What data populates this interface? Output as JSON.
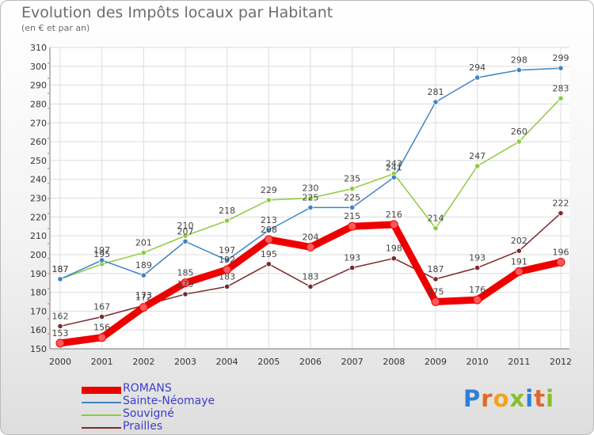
{
  "chart_data": {
    "type": "line",
    "title": "Evolution des Impôts locaux par Habitant",
    "subtitle": "(en € et par an)",
    "x": [
      "2000",
      "2001",
      "2002",
      "2003",
      "2004",
      "2005",
      "2006",
      "2007",
      "2008",
      "2009",
      "2010",
      "2011",
      "2012"
    ],
    "ylim": [
      150,
      310
    ],
    "yticks": [
      150,
      160,
      170,
      180,
      190,
      200,
      210,
      220,
      230,
      240,
      250,
      260,
      270,
      280,
      290,
      300,
      310
    ],
    "grid": true,
    "series": [
      {
        "name": "ROMANS",
        "color": "#ee0000",
        "values": [
          153,
          156,
          172,
          185,
          192,
          208,
          204,
          215,
          216,
          175,
          176,
          191,
          196
        ]
      },
      {
        "name": "Sainte-Néomaye",
        "color": "#3d85c6",
        "values": [
          187,
          197,
          189,
          207,
          197,
          213,
          225,
          225,
          241,
          281,
          294,
          298,
          299
        ]
      },
      {
        "name": "Souvigné",
        "color": "#8ccc3c",
        "values": [
          187,
          195,
          201,
          210,
          218,
          229,
          230,
          235,
          243,
          214,
          247,
          260,
          283
        ]
      },
      {
        "name": "Prailles",
        "color": "#7b2a2a",
        "values": [
          162,
          167,
          173,
          179,
          183,
          195,
          183,
          193,
          198,
          187,
          193,
          202,
          222
        ]
      }
    ]
  },
  "logo": {
    "letters": [
      "P",
      "r",
      "o",
      "x",
      "i",
      "t",
      "i"
    ]
  }
}
